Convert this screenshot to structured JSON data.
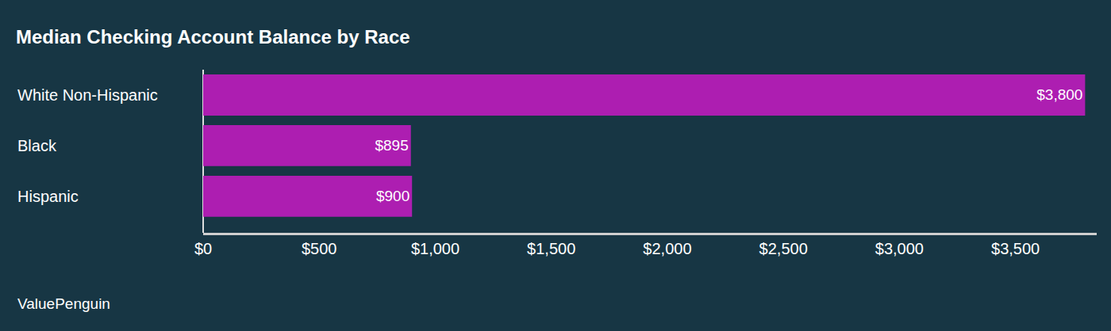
{
  "chart_data": {
    "type": "bar",
    "orientation": "horizontal",
    "title": "Median Checking Account Balance by Race",
    "categories": [
      "White Non-Hispanic",
      "Black",
      "Hispanic"
    ],
    "values": [
      3800,
      895,
      900
    ],
    "value_labels": [
      "$3,800",
      "$895",
      "$900"
    ],
    "data_labels": true,
    "color": "#ad1eb1",
    "xlim": [
      0,
      3850
    ],
    "xticks": [
      {
        "value": 0,
        "label": "$0"
      },
      {
        "value": 500,
        "label": "$500"
      },
      {
        "value": 1000,
        "label": "$1,000"
      },
      {
        "value": 1500,
        "label": "$1,500"
      },
      {
        "value": 2000,
        "label": "$2,000"
      },
      {
        "value": 2500,
        "label": "$2,500"
      },
      {
        "value": 3000,
        "label": "$3,000"
      },
      {
        "value": 3500,
        "label": "$3,500"
      }
    ],
    "grid": false,
    "annotations": [
      "ValuePenguin"
    ]
  }
}
